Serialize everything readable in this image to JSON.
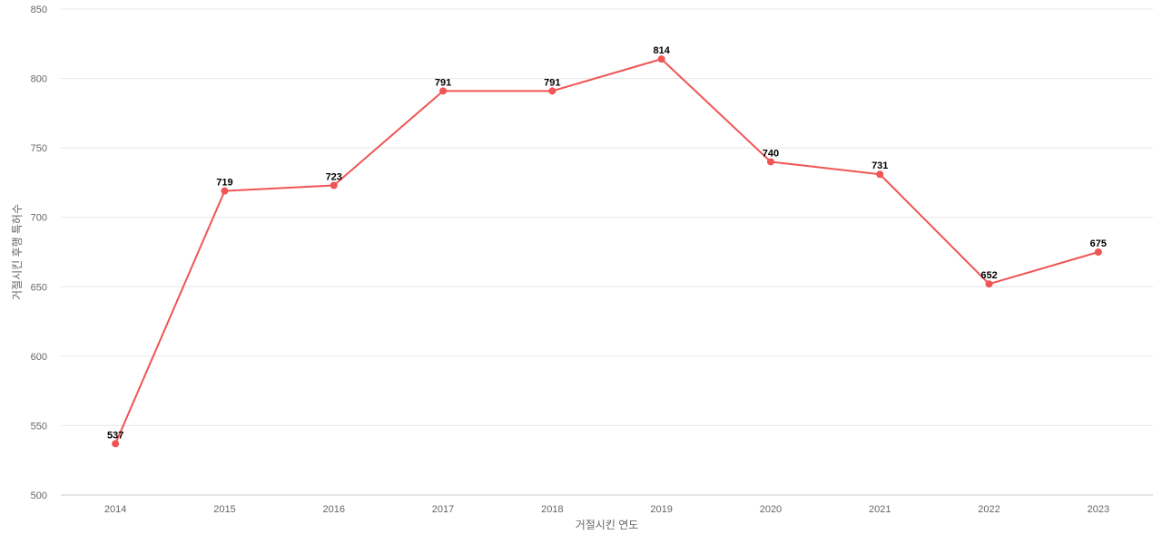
{
  "chart_data": {
    "type": "line",
    "title": "",
    "xlabel": "거절시킨 연도",
    "ylabel": "거절시킨 후행 특허수",
    "x": [
      "2014",
      "2015",
      "2016",
      "2017",
      "2018",
      "2019",
      "2020",
      "2021",
      "2022",
      "2023"
    ],
    "series": [
      {
        "values": [
          537,
          719,
          723,
          791,
          791,
          814,
          740,
          731,
          652,
          675
        ],
        "color": "#f05454"
      }
    ],
    "ylim": [
      500,
      850
    ],
    "yticks": [
      500,
      550,
      600,
      650,
      700,
      750,
      800,
      850
    ],
    "grid": true,
    "show_data_labels": true
  }
}
